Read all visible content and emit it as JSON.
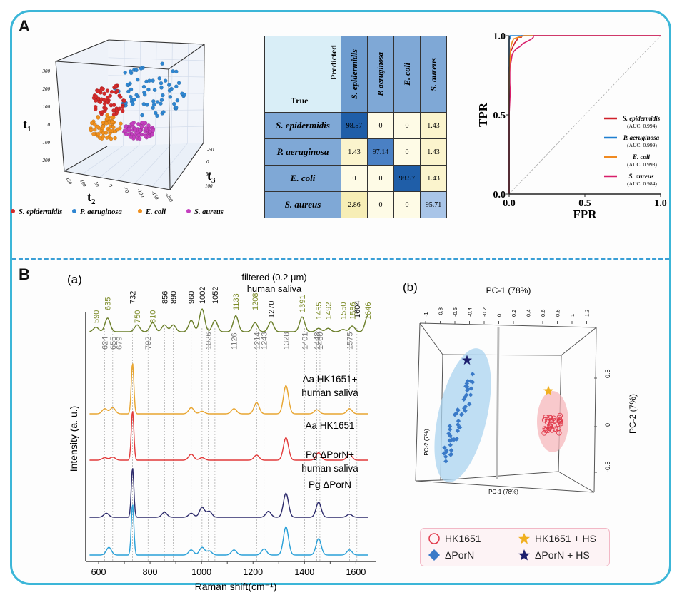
{
  "panels": {
    "A_label": "A",
    "B_label": "B",
    "sub_a_label": "(a)",
    "sub_b_label": "(b)"
  },
  "chart_data": [
    {
      "type": "scatter",
      "id": "pca-3d-scatter",
      "title": "",
      "axes": {
        "x": "t2",
        "y": "t1",
        "z": "t3"
      },
      "ticks": {
        "t1": [
          "300",
          "200",
          "100",
          "0",
          "-100",
          "-200"
        ],
        "t2": [
          "150",
          "100",
          "50",
          "0",
          "-50",
          "-100",
          "-150",
          "-200"
        ],
        "t3": [
          "-50",
          "0",
          "50",
          "100"
        ]
      },
      "legend": [
        {
          "label": "S. epidermidis",
          "color": "#d42a2a"
        },
        {
          "label": "P. aeruginosa",
          "color": "#2f86d1"
        },
        {
          "label": "E. coli",
          "color": "#f0901e"
        },
        {
          "label": "S. aureus",
          "color": "#c43fbf"
        }
      ],
      "clusters": [
        {
          "name": "S. epidermidis",
          "t1_center": 180,
          "t2_center": 60,
          "spread": 60
        },
        {
          "name": "P. aeruginosa",
          "t1_center": 200,
          "t2_center": -80,
          "spread": 100
        },
        {
          "name": "E. coli",
          "t1_center": 40,
          "t2_center": 70,
          "spread": 50
        },
        {
          "name": "S. aureus",
          "t1_center": 20,
          "t2_center": -40,
          "spread": 35
        }
      ]
    },
    {
      "type": "table",
      "id": "confusion-matrix",
      "corner_predicted": "Predicted",
      "corner_true": "True",
      "columns": [
        "S. epidermidis",
        "P. aeruginosa",
        "E. coli",
        "S. aureus"
      ],
      "rows": [
        {
          "label": "S. epidermidis",
          "values": [
            "98.57",
            "0",
            "0",
            "1.43"
          ]
        },
        {
          "label": "P. aeruginosa",
          "values": [
            "1.43",
            "97.14",
            "0",
            "1.43"
          ]
        },
        {
          "label": "E. coli",
          "values": [
            "0",
            "0",
            "98.57",
            "1.43"
          ]
        },
        {
          "label": "S. aureus",
          "values": [
            "2.86",
            "0",
            "0",
            "95.71"
          ]
        }
      ]
    },
    {
      "type": "line",
      "id": "roc-curve",
      "xlabel": "FPR",
      "ylabel": "TPR",
      "xlim": [
        0,
        1
      ],
      "ylim": [
        0,
        1
      ],
      "xticks": [
        "0.0",
        "0.5",
        "1.0"
      ],
      "yticks": [
        "0.0",
        "0.5",
        "1.0"
      ],
      "legend_position": "bottom-right",
      "series": [
        {
          "name": "S. epidermidis",
          "auc": "(AUC: 0.994)",
          "color": "#d0202a",
          "x": [
            0,
            0,
            0.01,
            0.01,
            0.02,
            0.03,
            0.04,
            0.05,
            0.06,
            0.08,
            0.08,
            1.0
          ],
          "y": [
            0,
            0.8,
            0.84,
            0.9,
            0.92,
            0.94,
            0.96,
            0.97,
            0.99,
            0.99,
            1.0,
            1.0
          ]
        },
        {
          "name": "P. aeruginosa",
          "auc": "(AUC: 0.999)",
          "color": "#1e7fd0",
          "x": [
            0,
            0,
            0.005,
            0.005,
            1.0
          ],
          "y": [
            0,
            0.98,
            0.98,
            1.0,
            1.0
          ]
        },
        {
          "name": "E. coli",
          "auc": "(AUC: 0.998)",
          "color": "#f08a20",
          "x": [
            0,
            0,
            0.01,
            0.02,
            0.03,
            0.06,
            0.1,
            0.16,
            1.0
          ],
          "y": [
            0,
            0.75,
            0.92,
            0.96,
            0.98,
            0.99,
            1.0,
            1.0,
            1.0
          ]
        },
        {
          "name": "S. aureus",
          "auc": "(AUC: 0.984)",
          "color": "#d81e6a",
          "x": [
            0,
            0,
            0.01,
            0.01,
            0.02,
            0.03,
            0.05,
            0.07,
            0.09,
            0.11,
            0.13,
            0.15,
            0.16,
            0.16,
            1.0
          ],
          "y": [
            0,
            0.5,
            0.7,
            0.82,
            0.88,
            0.9,
            0.92,
            0.93,
            0.95,
            0.96,
            0.97,
            0.98,
            0.99,
            1.0,
            1.0
          ]
        }
      ]
    },
    {
      "type": "line",
      "id": "raman-spectra",
      "xlabel": "Raman shift(cm⁻¹)",
      "ylabel": "Intensity (a. u.)",
      "xlim": [
        550,
        1660
      ],
      "xticks": [
        "600",
        "800",
        "1000",
        "1200",
        "1400",
        "1600"
      ],
      "top_title_line1": "filtered (0.2 μm)",
      "top_title_line2": "human saliva",
      "black_peaks": [
        "732",
        "856",
        "890",
        "960",
        "1002",
        "1052",
        "1270",
        "1604"
      ],
      "green_peaks": [
        "590",
        "635",
        "750",
        "810",
        "1133",
        "1208",
        "1391",
        "1455",
        "1492",
        "1550",
        "1586",
        "1646"
      ],
      "gray_peaks": [
        "624",
        "655",
        "679",
        "792",
        "1026",
        "1126",
        "1214",
        "1243",
        "1328",
        "1401",
        "1448",
        "1460",
        "1575"
      ],
      "series": [
        {
          "name": "filtered (0.2 μm) human saliva",
          "color": "#6b7f2a",
          "peaks": [
            [
              590,
              0.2
            ],
            [
              635,
              0.6
            ],
            [
              750,
              0.3
            ],
            [
              810,
              0.4
            ],
            [
              856,
              0.3
            ],
            [
              890,
              0.3
            ],
            [
              960,
              0.5
            ],
            [
              1002,
              1.0
            ],
            [
              1052,
              0.5
            ],
            [
              1133,
              0.7
            ],
            [
              1208,
              0.4
            ],
            [
              1270,
              0.45
            ],
            [
              1391,
              0.65
            ],
            [
              1455,
              0.15
            ],
            [
              1492,
              0.15
            ],
            [
              1550,
              0.1
            ],
            [
              1586,
              0.25
            ],
            [
              1646,
              0.7
            ]
          ]
        },
        {
          "name": "Aa HK1651+ human saliva",
          "label_line1": "Aa HK1651+",
          "label_line2": "human saliva",
          "color": "#e8a530",
          "peaks": [
            [
              624,
              0.1
            ],
            [
              655,
              0.12
            ],
            [
              732,
              1.0
            ],
            [
              960,
              0.12
            ],
            [
              1002,
              0.05
            ],
            [
              1126,
              0.1
            ],
            [
              1214,
              0.22
            ],
            [
              1328,
              0.55
            ],
            [
              1448,
              0.08
            ],
            [
              1575,
              0.1
            ]
          ]
        },
        {
          "name": "Aa HK1651",
          "label_line1": "Aa HK1651",
          "label_line2": "",
          "color": "#e23a3a",
          "peaks": [
            [
              624,
              0.05
            ],
            [
              655,
              0.06
            ],
            [
              732,
              1.0
            ],
            [
              960,
              0.12
            ],
            [
              1002,
              0.05
            ],
            [
              1214,
              0.1
            ],
            [
              1328,
              0.45
            ],
            [
              1455,
              0.15
            ],
            [
              1575,
              0.12
            ]
          ]
        },
        {
          "name": "Pg ΔPorN+ human saliva",
          "label_line1": "Pg ΔPorN+",
          "label_line2": "human saliva",
          "color": "#2c2a6b",
          "peaks": [
            [
              630,
              0.08
            ],
            [
              732,
              1.0
            ],
            [
              856,
              0.1
            ],
            [
              960,
              0.08
            ],
            [
              1002,
              0.2
            ],
            [
              1030,
              0.12
            ],
            [
              1260,
              0.12
            ],
            [
              1328,
              0.48
            ],
            [
              1455,
              0.3
            ],
            [
              1575,
              0.06
            ]
          ]
        },
        {
          "name": "Pg ΔPorN",
          "label_line1": "Pg ΔPorN",
          "label_line2": "",
          "color": "#2aa0d8",
          "peaks": [
            [
              640,
              0.15
            ],
            [
              732,
              1.0
            ],
            [
              960,
              0.1
            ],
            [
              1002,
              0.15
            ],
            [
              1030,
              0.08
            ],
            [
              1126,
              0.1
            ],
            [
              1243,
              0.12
            ],
            [
              1328,
              0.55
            ],
            [
              1455,
              0.32
            ],
            [
              1575,
              0.1
            ]
          ]
        }
      ]
    },
    {
      "type": "scatter",
      "id": "pca-3d-pc",
      "title": "PC-1 (78%)",
      "xlabel": "PC-1 (78%)",
      "ylabel": "PC-2 (7%)",
      "xticks": [
        "-1",
        "-0.8",
        "-0.6",
        "-0.4",
        "-0.2",
        "0",
        "0.2",
        "0.4",
        "0.6",
        "0.8",
        "1",
        "1.2"
      ],
      "yticks_right": [
        "0.5",
        "0",
        "-0.5"
      ],
      "legend": [
        {
          "label": "HK1651",
          "marker": "open-circle",
          "color": "#e0394a"
        },
        {
          "label": "HK1651 + HS",
          "marker": "star",
          "color": "#f0b020"
        },
        {
          "label": "ΔPorN",
          "marker": "diamond",
          "color": "#3a7ac8"
        },
        {
          "label": "ΔPorN + HS",
          "marker": "star",
          "color": "#1c1f6e"
        }
      ],
      "groups": [
        {
          "name": "ΔPorN",
          "pc1_center": -0.6,
          "pc2_center": 0.05
        },
        {
          "name": "HK1651",
          "pc1_center": 0.75,
          "pc2_center": 0.05
        },
        {
          "name": "HK1651 + HS",
          "pc1": 0.65,
          "pc2": 0.4
        },
        {
          "name": "ΔPorN + HS",
          "pc1": -0.45,
          "pc2": 0.9
        }
      ]
    }
  ]
}
